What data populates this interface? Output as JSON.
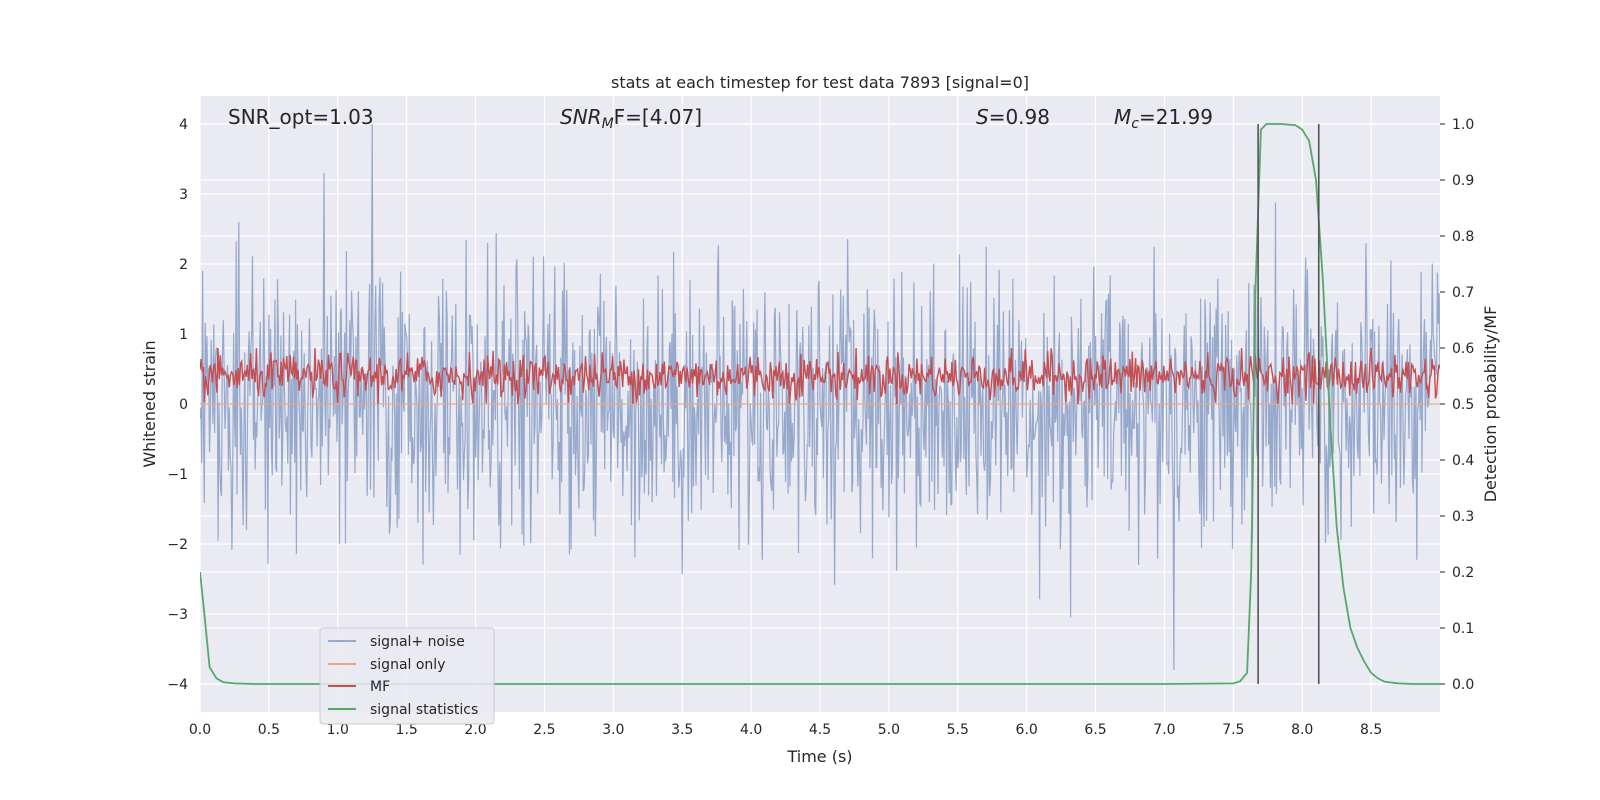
{
  "chart_data": {
    "type": "line",
    "title": "stats at each timestep for test data 7893 [signal=0]",
    "xlabel": "Time (s)",
    "ylabel_left": "Whitened strain",
    "ylabel_right": "Detection probability/MF",
    "xlim": [
      0.0,
      9.0
    ],
    "ylim_left": [
      -4.4,
      4.4
    ],
    "ylim_right": [
      -0.05,
      1.05
    ],
    "x_ticks": [
      "0.0",
      "0.5",
      "1.0",
      "1.5",
      "2.0",
      "2.5",
      "3.0",
      "3.5",
      "4.0",
      "4.5",
      "5.0",
      "5.5",
      "6.0",
      "6.5",
      "7.0",
      "7.5",
      "8.0",
      "8.5"
    ],
    "y_ticks_left": [
      "4",
      "3",
      "2",
      "1",
      "0",
      "−1",
      "−2",
      "−3",
      "−4"
    ],
    "y_ticks_right": [
      "1.0",
      "0.9",
      "0.8",
      "0.7",
      "0.6",
      "0.5",
      "0.4",
      "0.3",
      "0.2",
      "0.1",
      "0.0"
    ],
    "grid": true,
    "legend_position": "lower-left",
    "annotations": {
      "snr_opt": "SNR_opt=1.03",
      "snr_mf_base": "SNR",
      "snr_mf_sub": "M",
      "snr_mf_rest": "F=[4.07]",
      "s_symbol": "S",
      "s_value": "=0.98",
      "mc_symbol": "M",
      "mc_sub": "c",
      "mc_value": "=21.99"
    },
    "vlines_x": [
      7.68,
      8.12
    ],
    "series": [
      {
        "name": "signal+ noise",
        "color": "#96a8cc",
        "axis": "left",
        "note_envelope": "noise band approx between -2.5 and 2.5 with spikes to 4.0 near t=1.25 and -3.8 near t=7.07",
        "samples_per_second": 160,
        "amplitude": 1.0
      },
      {
        "name": "signal only",
        "color": "#e8a887",
        "axis": "left",
        "x": [
          0.0,
          9.0
        ],
        "y": [
          0.0,
          0.0
        ]
      },
      {
        "name": "MF",
        "color": "#c44e52",
        "axis": "right",
        "baseline": 0.55,
        "range": [
          0.5,
          0.6
        ]
      },
      {
        "name": "signal statistics",
        "color": "#55a868",
        "axis": "right",
        "x": [
          0.0,
          0.03,
          0.07,
          0.12,
          0.17,
          0.25,
          0.4,
          1.0,
          2.0,
          3.0,
          4.0,
          5.0,
          6.0,
          7.0,
          7.5,
          7.55,
          7.6,
          7.63,
          7.66,
          7.7,
          7.74,
          7.78,
          7.85,
          7.9,
          7.95,
          8.0,
          8.05,
          8.1,
          8.15,
          8.2,
          8.25,
          8.3,
          8.35,
          8.4,
          8.45,
          8.5,
          8.55,
          8.6,
          8.7,
          8.8,
          9.0
        ],
        "y": [
          0.2,
          0.13,
          0.03,
          0.01,
          0.003,
          0.001,
          0.0,
          0.0,
          0.0,
          0.0,
          0.0,
          0.0,
          0.0,
          0.0,
          0.001,
          0.005,
          0.02,
          0.2,
          0.7,
          0.99,
          1.0,
          1.0,
          1.0,
          0.999,
          0.998,
          0.99,
          0.97,
          0.9,
          0.72,
          0.48,
          0.28,
          0.17,
          0.1,
          0.065,
          0.04,
          0.02,
          0.01,
          0.004,
          0.001,
          0.0,
          0.0
        ]
      }
    ]
  }
}
